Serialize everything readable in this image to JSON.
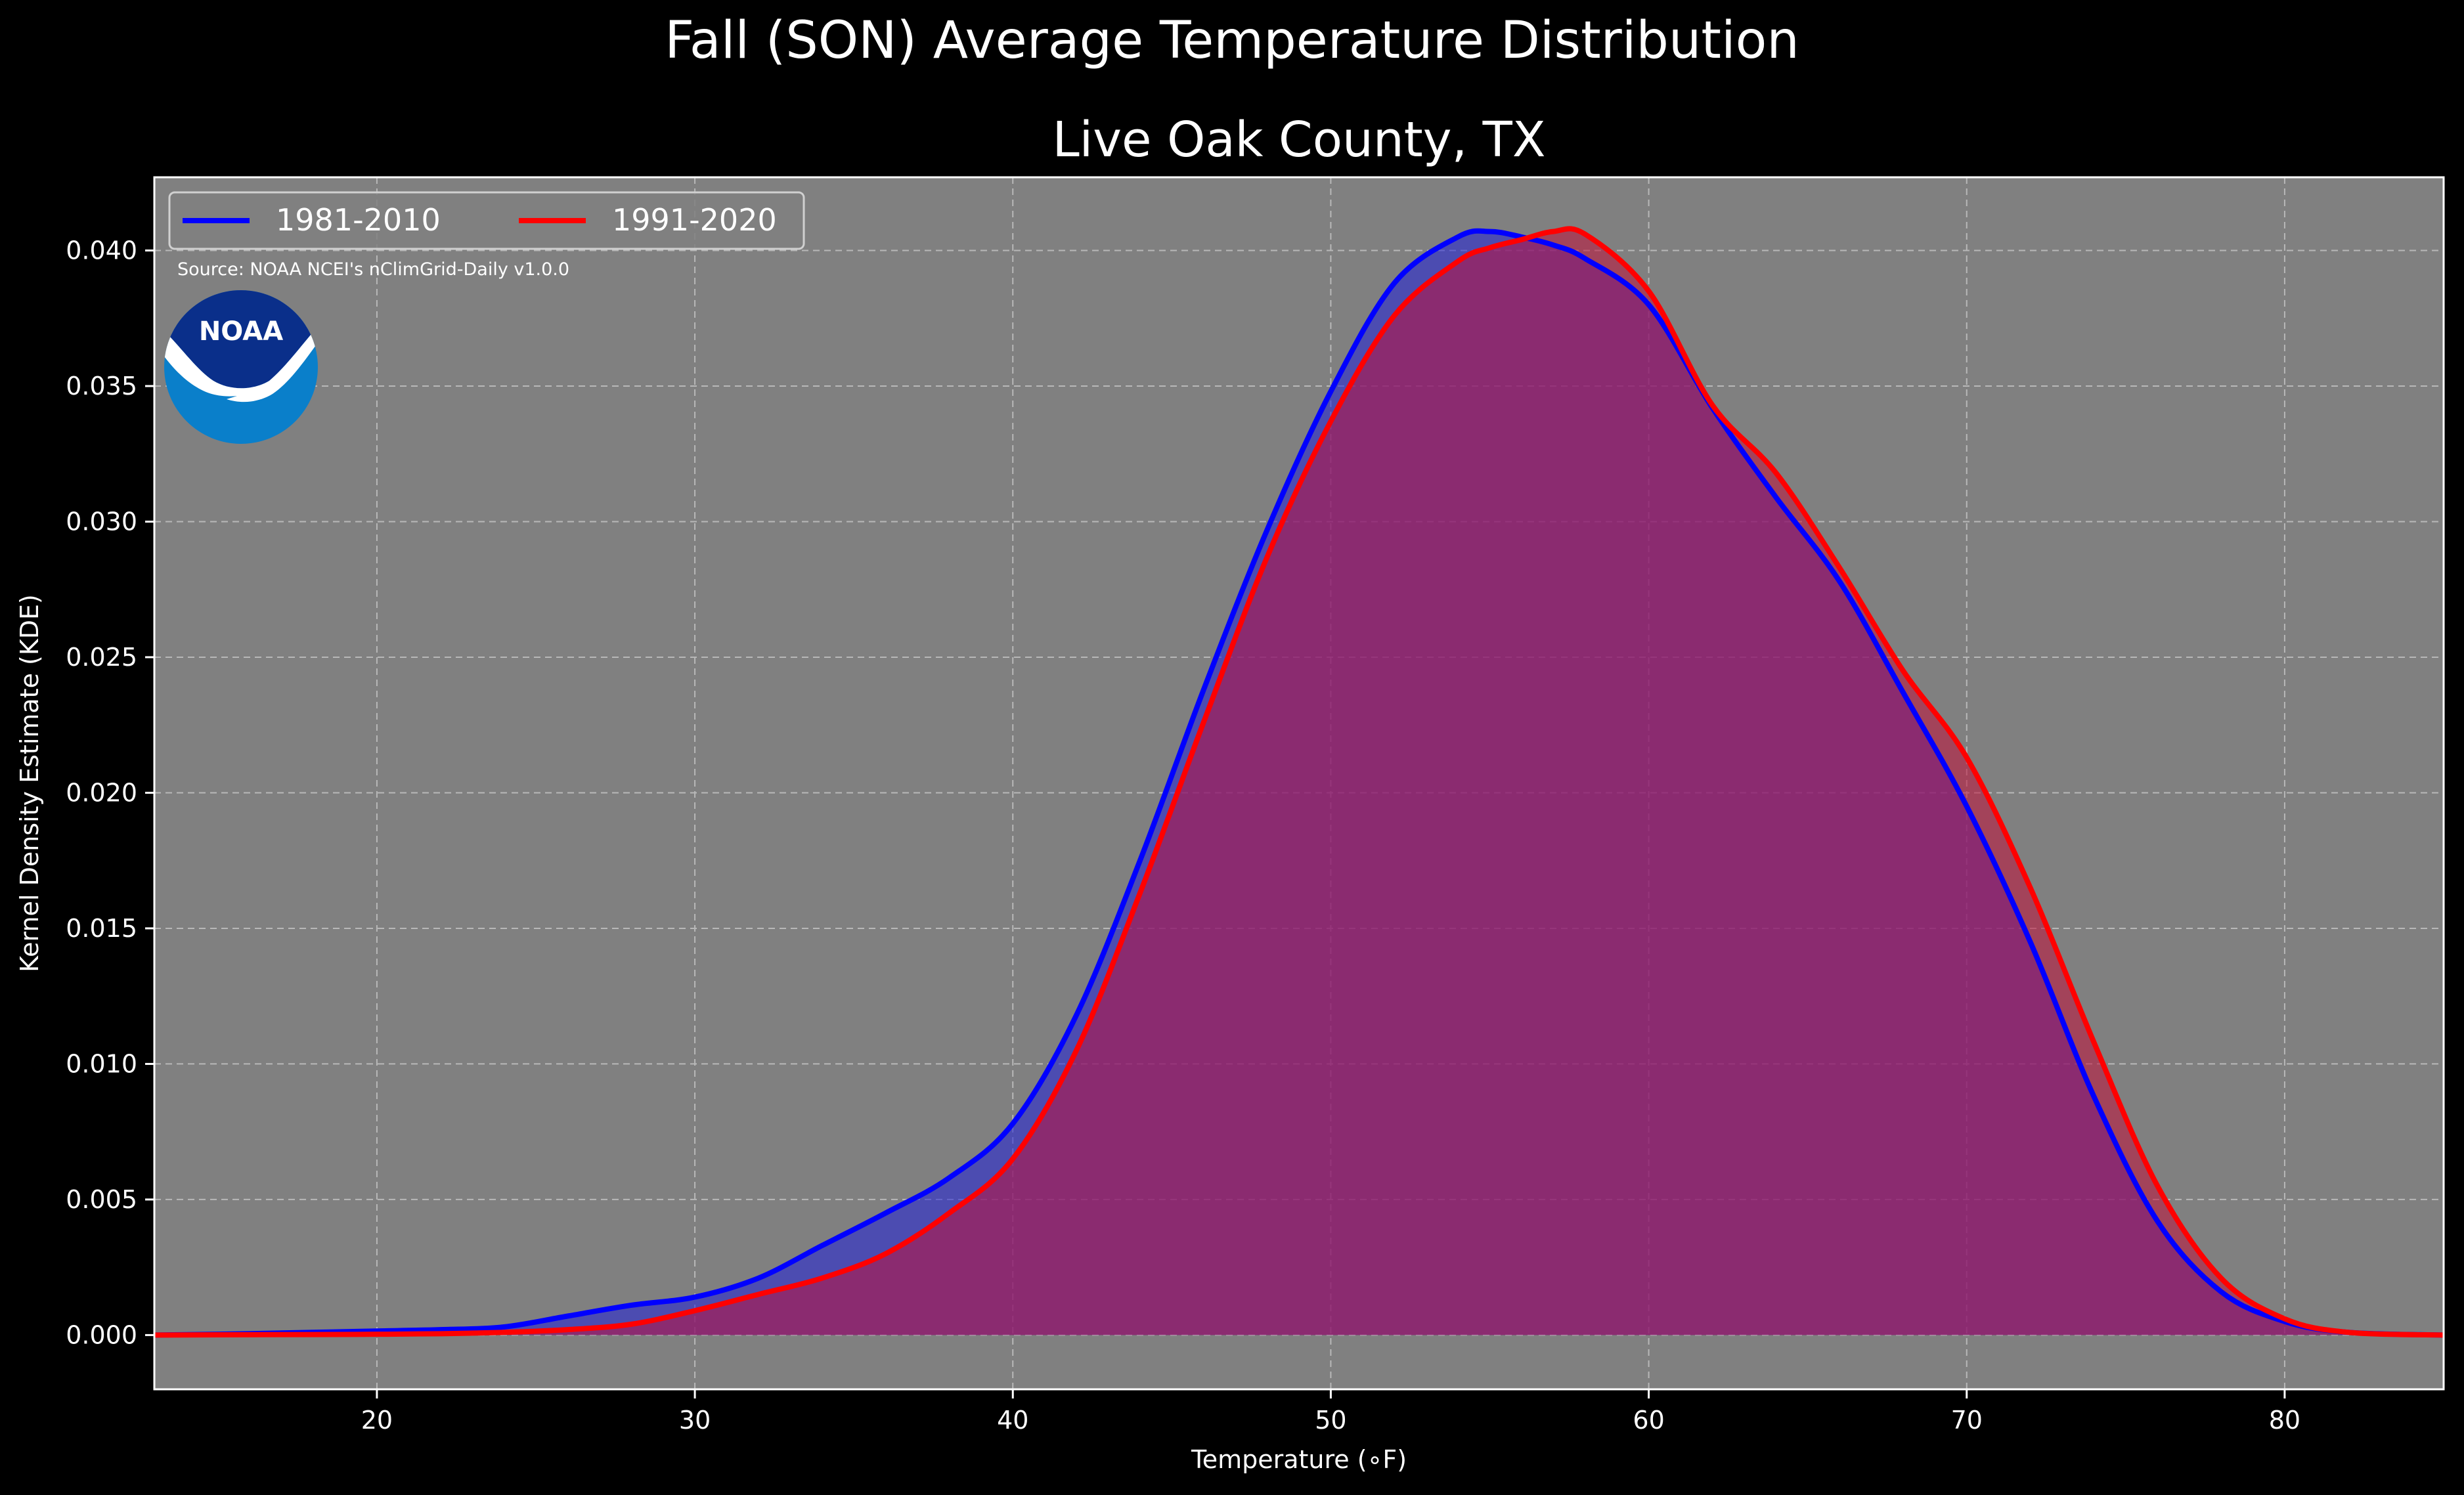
{
  "figure": {
    "suptitle": "Fall (SON) Average Temperature Distribution",
    "title": "Live Oak County, TX",
    "source": "Source: NOAA NCEI's nClimGrid-Daily v1.0.0",
    "logo_text": "NOAA"
  },
  "colors": {
    "background": "#000000",
    "plot_bg": "#808080",
    "series_1981": "#0000ff",
    "series_1991": "#ff0000",
    "overlap_fill": "#9c1e5c",
    "text": "#ffffff",
    "logo_dark": "#0a2f8a",
    "logo_light": "#0a7fca"
  },
  "chart_data": {
    "type": "area",
    "title": "Live Oak County, TX",
    "xlabel": "Temperature ($^\\circ$F)",
    "xlabel_display": "Temperature (∘F)",
    "ylabel": "Kernel Density Estimate (KDE)",
    "xlim": [
      13,
      85
    ],
    "ylim": [
      -0.002,
      0.0427
    ],
    "xticks": [
      20,
      30,
      40,
      50,
      60,
      70,
      80
    ],
    "xtick_labels": [
      "20",
      "30",
      "40",
      "50",
      "60",
      "70",
      "80"
    ],
    "yticks": [
      0.0,
      0.005,
      0.01,
      0.015,
      0.02,
      0.025,
      0.03,
      0.035,
      0.04
    ],
    "ytick_labels": [
      "0.000",
      "0.005",
      "0.010",
      "0.015",
      "0.020",
      "0.025",
      "0.030",
      "0.035",
      "0.040"
    ],
    "grid": true,
    "legend": "top-left",
    "x": [
      13,
      15,
      18,
      20,
      22,
      24,
      26,
      28,
      30,
      32,
      34,
      36,
      38,
      40,
      42,
      44,
      46,
      48,
      50,
      52,
      54,
      55,
      56,
      57,
      58,
      60,
      62,
      64,
      66,
      68,
      70,
      72,
      74,
      76,
      78,
      80,
      82,
      85
    ],
    "series": [
      {
        "name": "1981-2010",
        "values": [
          0.0,
          3e-05,
          0.0001,
          0.00015,
          0.0002,
          0.0003,
          0.0007,
          0.0011,
          0.0014,
          0.0021,
          0.0033,
          0.0045,
          0.0058,
          0.0078,
          0.0118,
          0.0175,
          0.0238,
          0.0297,
          0.0348,
          0.0388,
          0.0405,
          0.0407,
          0.0405,
          0.0402,
          0.0397,
          0.038,
          0.0342,
          0.0309,
          0.0278,
          0.0237,
          0.0195,
          0.0145,
          0.0088,
          0.0042,
          0.0016,
          0.0005,
          0.0001,
          0.0
        ]
      },
      {
        "name": "1991-2020",
        "values": [
          0.0,
          1e-05,
          2e-05,
          3e-05,
          5e-05,
          0.0001,
          0.0002,
          0.0004,
          0.0009,
          0.0015,
          0.0021,
          0.003,
          0.0045,
          0.0065,
          0.0105,
          0.0163,
          0.0226,
          0.0287,
          0.0337,
          0.0376,
          0.0396,
          0.0401,
          0.0404,
          0.0407,
          0.0406,
          0.0385,
          0.0343,
          0.0318,
          0.0283,
          0.0245,
          0.0213,
          0.0165,
          0.0108,
          0.0055,
          0.0021,
          0.0006,
          0.0001,
          0.0
        ]
      }
    ]
  }
}
